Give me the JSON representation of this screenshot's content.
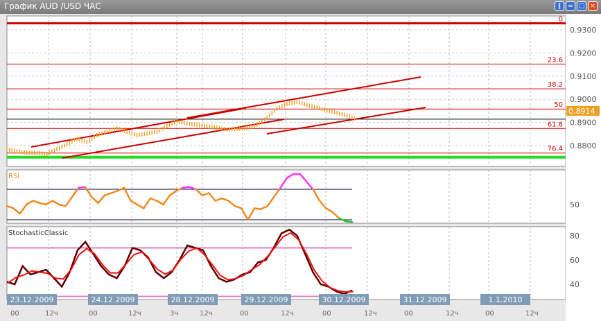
{
  "window": {
    "title": "График AUD /USD  ЧАС",
    "buttons": [
      "tile",
      "cascade",
      "maximize",
      "close"
    ]
  },
  "colors": {
    "fib": "#d00000",
    "support": "#22dd22",
    "price": "#f0a020",
    "rsi_normal": "#f08a20",
    "rsi_over": "#ff33ff",
    "rsi_under": "#22cc22",
    "stoch_k": "#5a0000",
    "stoch_d": "#ee1111",
    "level": "#e080c0"
  },
  "main": {
    "price_axis": [
      "0.9300",
      "0.9200",
      "0.9100",
      "0.9000",
      "0.8900",
      "0.8800"
    ],
    "current_price": "0.8914",
    "fib_levels": [
      {
        "label": "0",
        "price": 0.9328
      },
      {
        "label": "23.6",
        "price": 0.9152
      },
      {
        "label": "38.2",
        "price": 0.9045
      },
      {
        "label": "50",
        "price": 0.8958
      },
      {
        "label": "61.8",
        "price": 0.8874
      },
      {
        "label": "76.4",
        "price": 0.8768
      }
    ],
    "support_price": 0.875,
    "prices": [
      0.8785,
      0.8775,
      0.877,
      0.8768,
      0.8764,
      0.8785,
      0.8806,
      0.883,
      0.8815,
      0.8845,
      0.886,
      0.8875,
      0.886,
      0.8845,
      0.8852,
      0.886,
      0.8885,
      0.8905,
      0.8895,
      0.889,
      0.8884,
      0.8878,
      0.8869,
      0.8872,
      0.8875,
      0.889,
      0.892,
      0.896,
      0.898,
      0.8989,
      0.8975,
      0.8965,
      0.8952,
      0.8941,
      0.893,
      0.8914
    ]
  },
  "rsi": {
    "label": "RSI",
    "axis": [
      "50"
    ],
    "values": [
      48,
      45,
      38,
      50,
      55,
      52,
      50,
      55,
      50,
      48,
      60,
      72,
      73,
      60,
      52,
      62,
      65,
      68,
      72,
      55,
      50,
      45,
      58,
      55,
      50,
      62,
      68,
      72,
      73,
      70,
      62,
      65,
      55,
      58,
      55,
      48,
      45,
      30,
      45,
      44,
      48,
      60,
      72,
      85,
      90,
      90,
      80,
      70,
      55,
      45,
      40,
      32,
      28,
      27
    ]
  },
  "stoch": {
    "label": "StochasticClassic",
    "axis": [
      "80",
      "60",
      "40"
    ],
    "k": [
      42,
      40,
      55,
      48,
      50,
      52,
      45,
      38,
      50,
      68,
      75,
      65,
      55,
      48,
      45,
      55,
      70,
      68,
      62,
      50,
      45,
      50,
      60,
      72,
      70,
      68,
      55,
      45,
      42,
      44,
      48,
      50,
      58,
      60,
      70,
      82,
      85,
      80,
      65,
      50,
      40,
      38,
      34,
      32,
      35
    ]
  },
  "time_axis": {
    "dates": [
      "23.12.2009",
      "24.12.2009",
      "28.12.2009",
      "29.12.2009",
      "30.12.2009",
      "31.12.2009",
      "1.1.2010"
    ],
    "ticks": [
      "00",
      "12ч",
      "00",
      "12ч",
      "3ч",
      "12ч",
      "00",
      "12ч",
      "00",
      "12ч",
      "00",
      "12ч",
      "00",
      "12ч"
    ]
  }
}
